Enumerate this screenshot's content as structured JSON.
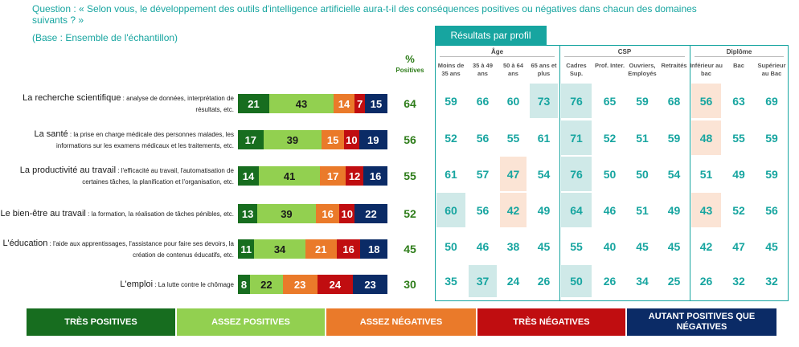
{
  "question": {
    "line1": "Question : « Selon vous, le développement des outils d'intelligence artificielle aura-t-il des conséquences positives ou négatives dans chacun des domaines",
    "line2": "suivants ? »",
    "base": "(Base : Ensemble de l'échantillon)"
  },
  "pct_header": {
    "sign": "%",
    "label": "Positives"
  },
  "profil_button": "Résultats par profil",
  "colors": {
    "tres_positives": "#176d1f",
    "assez_positives": "#92d050",
    "assez_negatives": "#ea7a2a",
    "tres_negatives": "#c00d10",
    "autant": "#0b2b66",
    "teal": "#17a5a0",
    "highlight_high": "#cfe9e8",
    "highlight_low": "#fbe4d5"
  },
  "legend": [
    "TRÈS POSITIVES",
    "ASSEZ POSITIVES",
    "ASSEZ NÉGATIVES",
    "TRÈS NÉGATIVES",
    "AUTANT POSITIVES QUE NÉGATIVES"
  ],
  "profile_groups": [
    "Âge",
    "CSP",
    "Diplôme"
  ],
  "profile_columns": [
    "Moins de 35 ans",
    "35 à 49 ans",
    "50 à 64 ans",
    "65 ans et plus",
    "Cadres Sup.",
    "Prof. Inter.",
    "Ouvriers, Employés",
    "Retraités",
    "Inférieur au bac",
    "Bac",
    "Supérieur au Bac"
  ],
  "chart_data": {
    "type": "bar",
    "stacked": true,
    "orientation": "horizontal",
    "categories": [
      "La recherche scientifique",
      "La santé",
      "La productivité au travail",
      "Le bien-être au travail",
      "L'éducation",
      "L'emploi"
    ],
    "category_details": [
      "analyse de données, interprétation de résultats, etc.",
      "la prise en charge médicale des personnes malades, les informations sur les examens médicaux et les traitements, etc.",
      "l'efficacité au travail, l'automatisation de certaines tâches, la planification et l'organisation, etc.",
      "la formation, la réalisation de tâches pénibles, etc.",
      "l'aide aux apprentissages, l'assistance pour faire ses devoirs, la création de contenus éducatifs, etc.",
      "La lutte contre le chômage"
    ],
    "series": [
      {
        "name": "TRÈS POSITIVES",
        "values": [
          21,
          17,
          14,
          13,
          11,
          8
        ]
      },
      {
        "name": "ASSEZ POSITIVES",
        "values": [
          43,
          39,
          41,
          39,
          34,
          22
        ]
      },
      {
        "name": "ASSEZ NÉGATIVES",
        "values": [
          14,
          15,
          17,
          16,
          21,
          23
        ]
      },
      {
        "name": "TRÈS NÉGATIVES",
        "values": [
          7,
          10,
          12,
          10,
          16,
          24
        ]
      },
      {
        "name": "AUTANT POSITIVES QUE NÉGATIVES",
        "values": [
          15,
          19,
          16,
          22,
          18,
          23
        ]
      }
    ],
    "positives_total": [
      64,
      56,
      55,
      52,
      45,
      30
    ],
    "xlim": [
      0,
      100
    ],
    "profile_results": [
      [
        59,
        66,
        60,
        73,
        76,
        65,
        59,
        68,
        56,
        63,
        69
      ],
      [
        52,
        56,
        55,
        61,
        71,
        52,
        51,
        59,
        48,
        55,
        59
      ],
      [
        61,
        57,
        47,
        54,
        76,
        50,
        50,
        54,
        51,
        49,
        59
      ],
      [
        60,
        56,
        42,
        49,
        64,
        46,
        51,
        49,
        43,
        52,
        56
      ],
      [
        50,
        46,
        38,
        45,
        55,
        40,
        45,
        45,
        42,
        47,
        45
      ],
      [
        35,
        37,
        24,
        26,
        50,
        26,
        34,
        25,
        26,
        32,
        32
      ]
    ],
    "profile_highlights": [
      [
        "",
        "",
        "",
        "high",
        "high",
        "",
        "",
        "",
        "low",
        "",
        ""
      ],
      [
        "",
        "",
        "",
        "",
        "high",
        "",
        "",
        "",
        "low",
        "",
        ""
      ],
      [
        "",
        "",
        "low",
        "",
        "high",
        "",
        "",
        "",
        "",
        "",
        ""
      ],
      [
        "high",
        "",
        "low",
        "",
        "high",
        "",
        "",
        "",
        "low",
        "",
        ""
      ],
      [
        "",
        "",
        "",
        "",
        "",
        "",
        "",
        "",
        "",
        "",
        ""
      ],
      [
        "",
        "high",
        "",
        "",
        "high",
        "",
        "",
        "",
        "",
        "",
        ""
      ]
    ]
  }
}
